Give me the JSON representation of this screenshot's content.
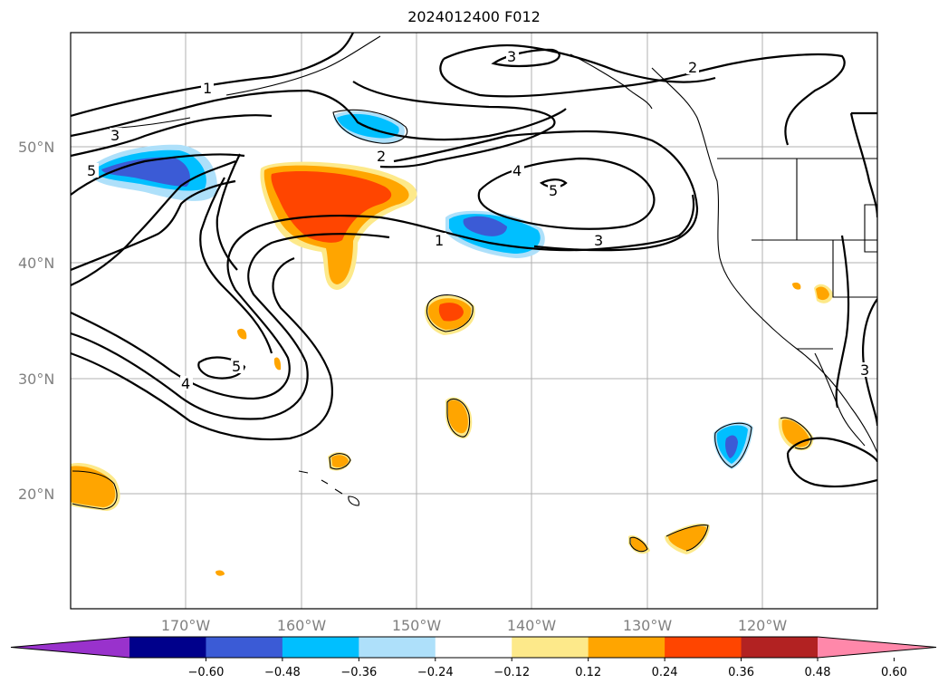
{
  "title": "2024012400 F012",
  "lat_labels": [
    "50°N",
    "40°N",
    "30°N",
    "20°N"
  ],
  "lon_labels": [
    "170°W",
    "160°W",
    "150°W",
    "140°W",
    "130°W",
    "120°W"
  ],
  "contour_labels": [
    "1",
    "1",
    "2",
    "2",
    "3",
    "3",
    "3",
    "3",
    "4",
    "4",
    "5",
    "5",
    "5"
  ],
  "colorbar": {
    "ticks": [
      "−0.60",
      "−0.48",
      "−0.36",
      "−0.24",
      "−0.12",
      "0.12",
      "0.24",
      "0.36",
      "0.48",
      "0.60"
    ],
    "colors": [
      "#9932cc",
      "#00008b",
      "#3b5bd6",
      "#00bfff",
      "#aee0fa",
      "#ffffff",
      "#fde98a",
      "#ffa500",
      "#ff4500",
      "#b22222",
      "#ff88aa"
    ]
  }
}
